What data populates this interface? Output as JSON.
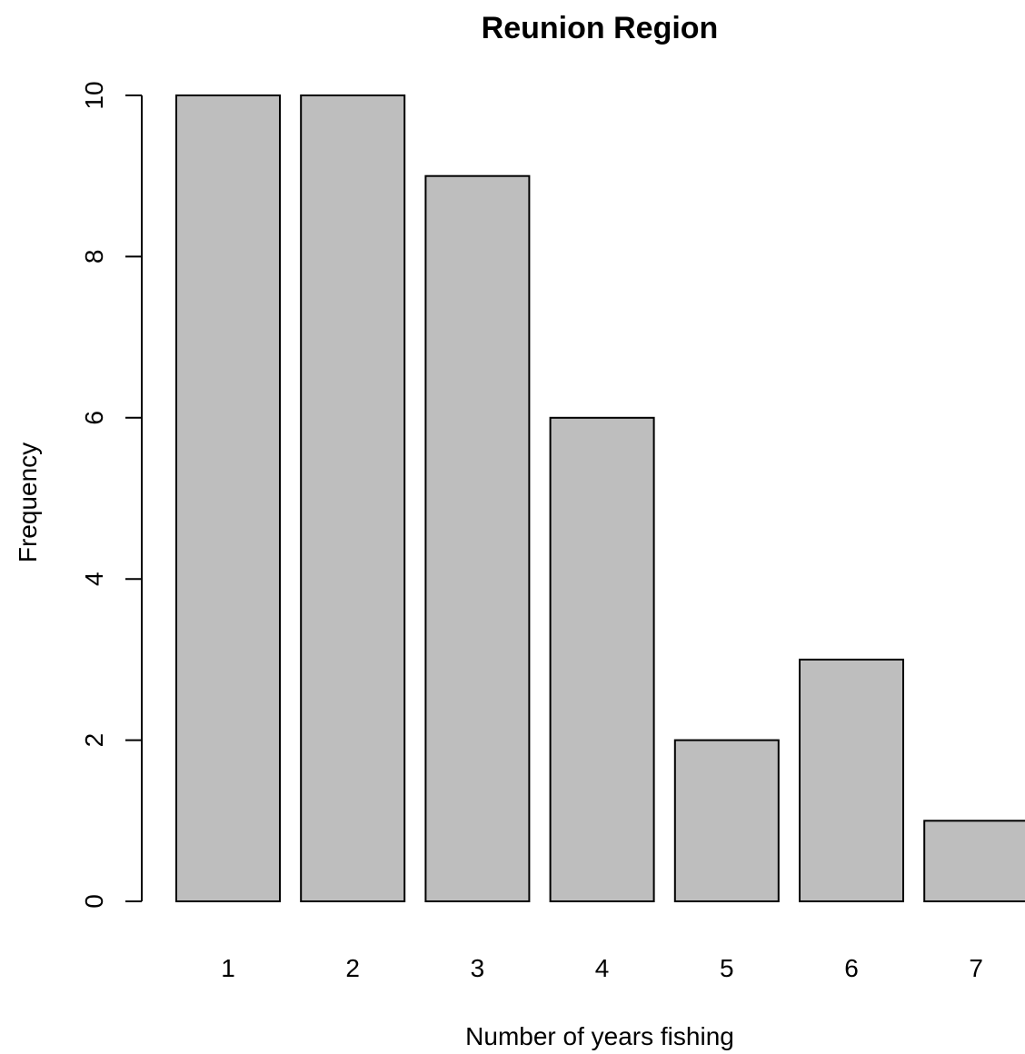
{
  "chart_data": {
    "type": "bar",
    "title": "Reunion Region",
    "xlabel": "Number of years fishing",
    "ylabel": "Frequency",
    "categories": [
      "1",
      "2",
      "3",
      "4",
      "5",
      "6",
      "7"
    ],
    "values": [
      10,
      10,
      9,
      6,
      2,
      3,
      1
    ],
    "ylim": [
      0,
      10
    ],
    "yticks": [
      "0",
      "2",
      "4",
      "6",
      "8",
      "10"
    ],
    "grid": false,
    "bar_color": "#bebebe",
    "bar_edge_color": "#000000"
  }
}
